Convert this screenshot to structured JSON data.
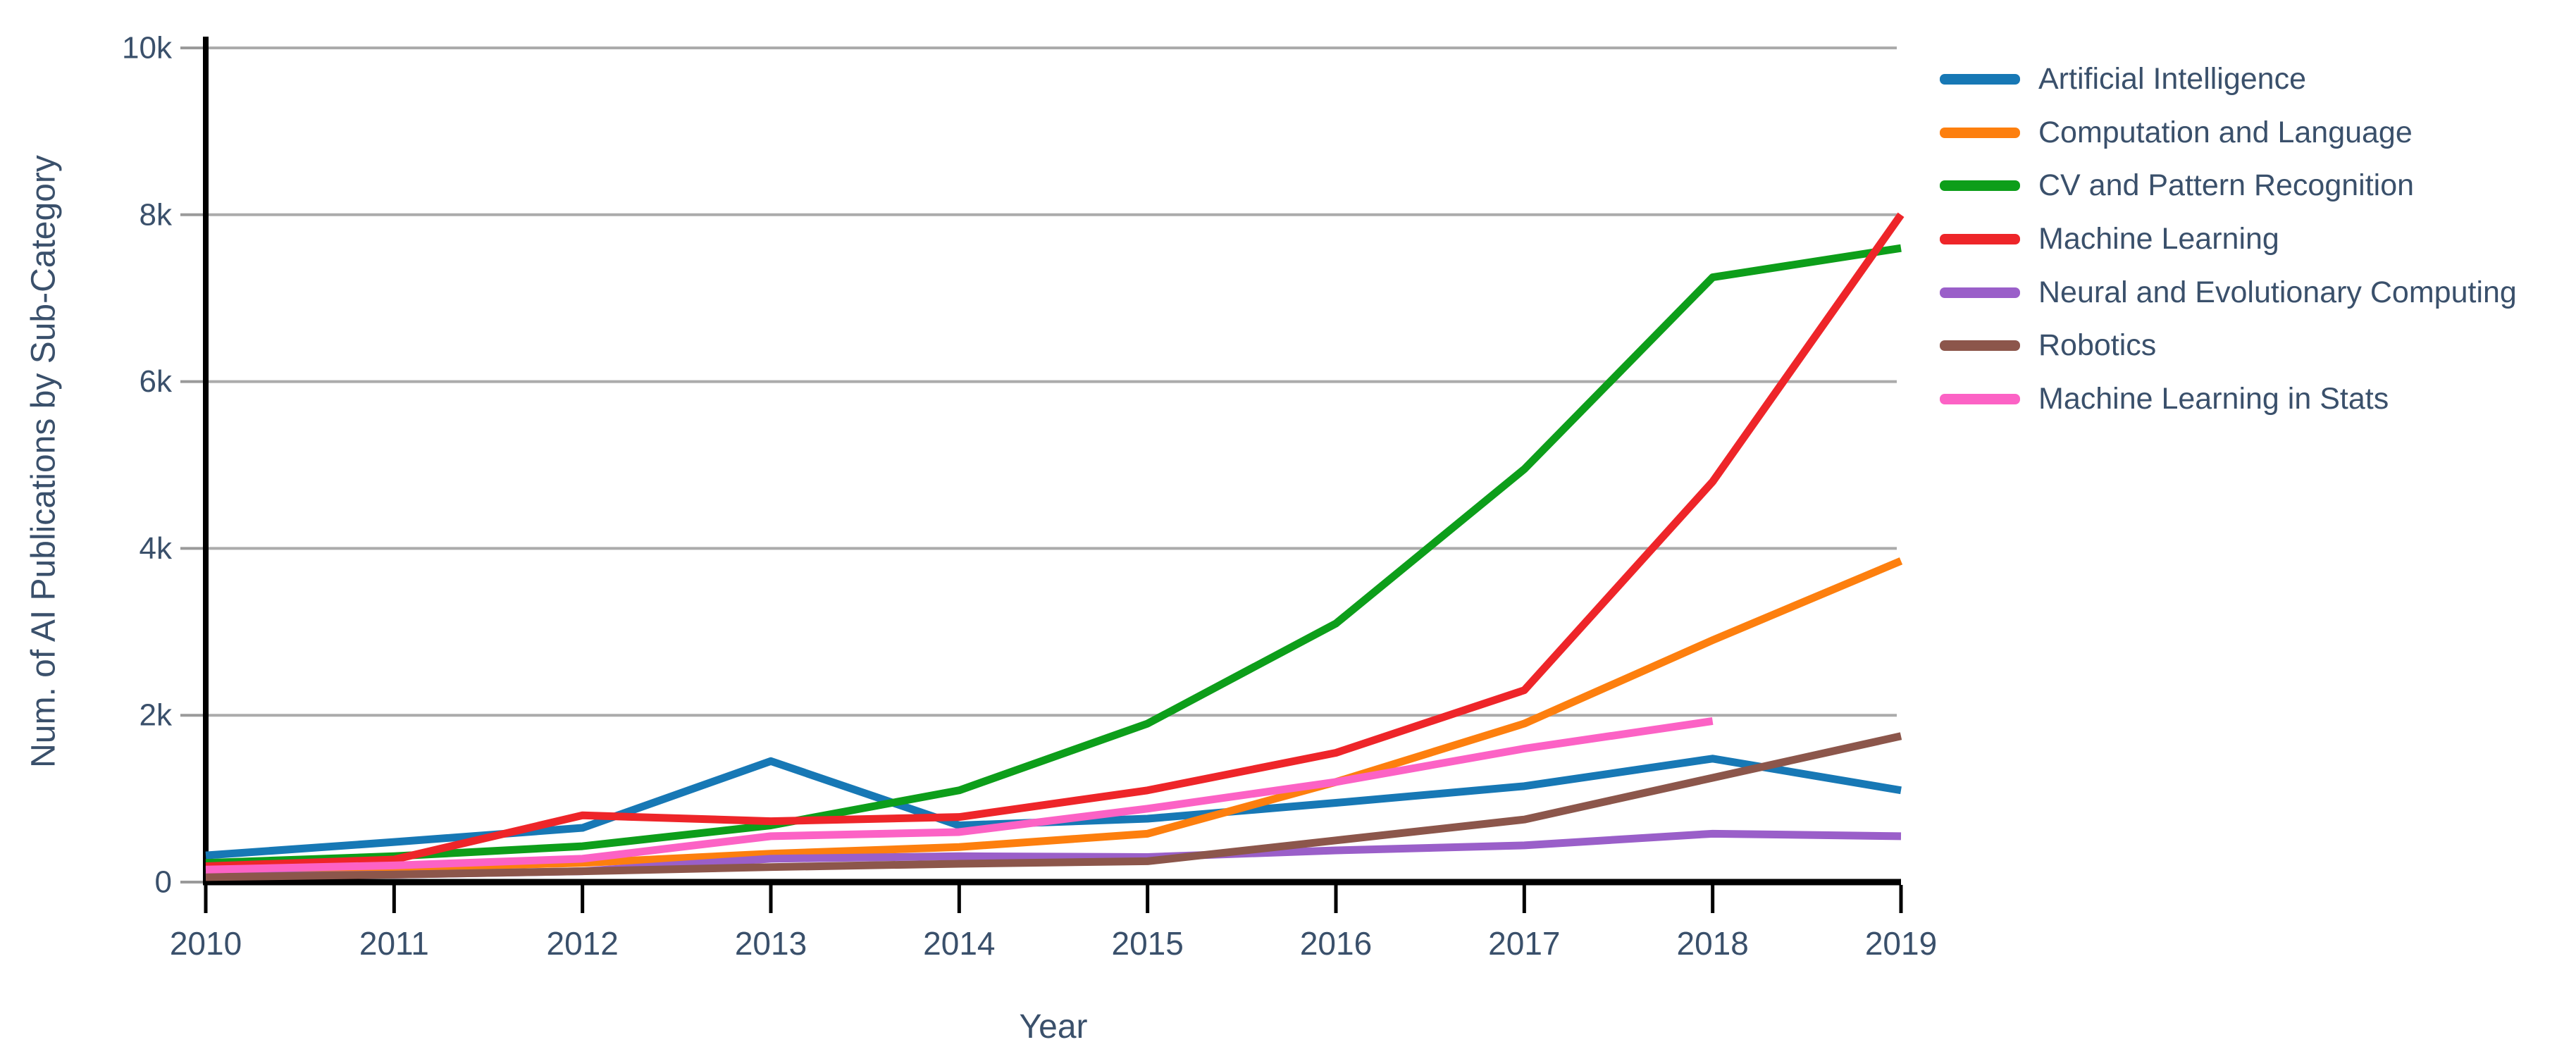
{
  "chart_data": {
    "type": "line",
    "title": "",
    "xlabel": "Year",
    "ylabel": "Num. of AI Publications by Sub-Category",
    "x": [
      2010,
      2011,
      2012,
      2013,
      2014,
      2015,
      2016,
      2017,
      2018,
      2019
    ],
    "ylim": [
      0,
      10000
    ],
    "yticks": [
      {
        "value": 0,
        "label": "0"
      },
      {
        "value": 2000,
        "label": "2k"
      },
      {
        "value": 4000,
        "label": "4k"
      },
      {
        "value": 6000,
        "label": "6k"
      },
      {
        "value": 8000,
        "label": "8k"
      },
      {
        "value": 10000,
        "label": "10k"
      }
    ],
    "grid": "horizontal",
    "legend_position": "outside-top-right",
    "series": [
      {
        "name": "Artificial Intelligence",
        "color": "#1778b5",
        "values": [
          320,
          480,
          650,
          1450,
          680,
          760,
          950,
          1150,
          1480,
          1100
        ]
      },
      {
        "name": "Computation and Language",
        "color": "#fd7f0e",
        "values": [
          130,
          170,
          230,
          340,
          420,
          580,
          1200,
          1900,
          2900,
          3850
        ]
      },
      {
        "name": "CV and Pattern Recognition",
        "color": "#0d9e1a",
        "values": [
          230,
          310,
          430,
          680,
          1100,
          1900,
          3100,
          4950,
          7250,
          7600
        ]
      },
      {
        "name": "Machine Learning",
        "color": "#ee2529",
        "values": [
          190,
          270,
          800,
          730,
          780,
          1100,
          1550,
          2300,
          4800,
          8000
        ]
      },
      {
        "name": "Neural and Evolutionary Computing",
        "color": "#9a5fc9",
        "values": [
          70,
          90,
          130,
          280,
          310,
          300,
          380,
          440,
          580,
          550
        ]
      },
      {
        "name": "Robotics",
        "color": "#8c564b",
        "values": [
          60,
          90,
          130,
          180,
          220,
          250,
          500,
          750,
          1250,
          1750
        ]
      },
      {
        "name": "Machine Learning in Stats",
        "color": "#fc62c5",
        "values": [
          150,
          200,
          280,
          550,
          600,
          880,
          1200,
          1600,
          1930,
          null
        ]
      }
    ]
  },
  "colors": {
    "axis": "#000000",
    "grid": "#ababab",
    "tick": "#9a9a9a",
    "text": "#3a506b",
    "background": "#ffffff"
  }
}
